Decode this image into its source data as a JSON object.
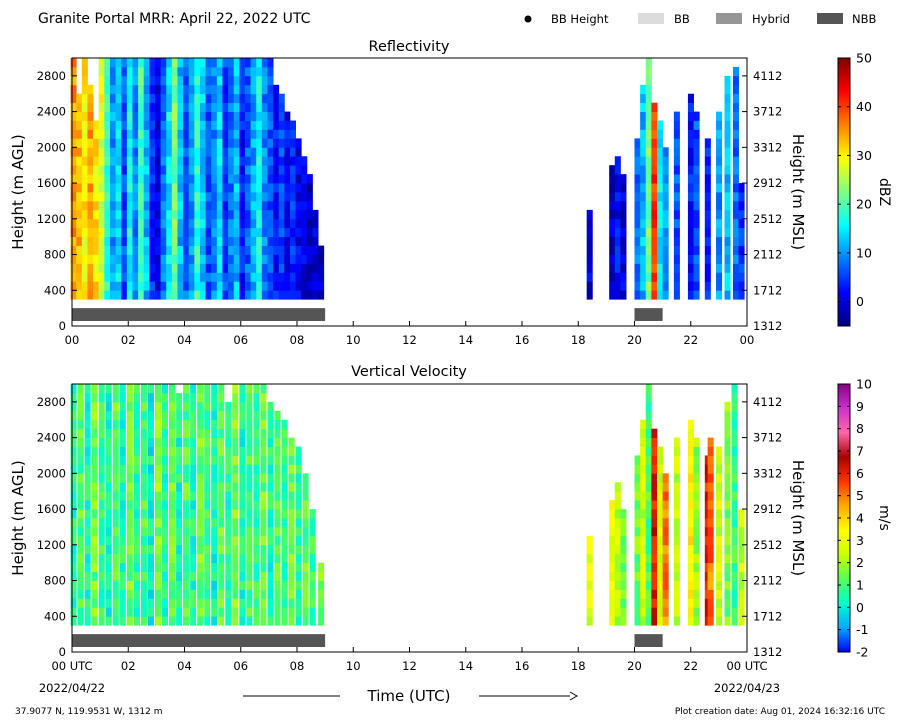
{
  "header": {
    "title": "Granite Portal MRR:  April 22, 2022 UTC",
    "legend": [
      {
        "label": "BB Height",
        "kind": "dot",
        "color": "#000000"
      },
      {
        "label": "BB",
        "kind": "rect",
        "color": "#dcdcdc"
      },
      {
        "label": "Hybrid",
        "kind": "rect",
        "color": "#969696"
      },
      {
        "label": "NBB",
        "kind": "rect",
        "color": "#555555"
      }
    ]
  },
  "footer": {
    "location": "37.9077 N, 119.9531 W, 1312 m",
    "created": "Plot creation date: Aug 01, 2024 16:32:16 UTC",
    "xlabel": "Time (UTC)",
    "start_date": "2022/04/22",
    "end_date": "2022/04/23"
  },
  "chart_data": [
    {
      "type": "heatmap",
      "title": "Reflectivity",
      "ylabel": "Height (m AGL)",
      "ylabel_right": "Height (m MSL)",
      "cbar_label": "dBZ",
      "x_ticks": [
        "00",
        "02",
        "04",
        "06",
        "08",
        "10",
        "12",
        "14",
        "16",
        "18",
        "20",
        "22",
        "00"
      ],
      "xlim_hours": [
        0,
        24
      ],
      "y_ticks": [
        0,
        400,
        800,
        1200,
        1600,
        2000,
        2400,
        2800
      ],
      "ylim": [
        0,
        3000
      ],
      "y_ticks_right": [
        1312,
        1712,
        2112,
        2512,
        2912,
        3312,
        3712,
        4112
      ],
      "cbar_ticks": [
        0,
        10,
        20,
        30,
        40,
        50
      ],
      "cbar_range": [
        -5,
        50
      ],
      "cbar_colors": [
        "#00007f",
        "#0000ff",
        "#007fff",
        "#00ffff",
        "#7fff7f",
        "#ffff00",
        "#ff7f00",
        "#ff0000",
        "#7f0000"
      ],
      "nbb_segments": [
        [
          0,
          9.0
        ],
        [
          20.0,
          21.0
        ]
      ],
      "columns": [
        {
          "t": 0.05,
          "top": 3000,
          "v": 35
        },
        {
          "t": 0.25,
          "top": 2600,
          "v": 33
        },
        {
          "t": 0.45,
          "top": 3000,
          "v": 30
        },
        {
          "t": 0.65,
          "top": 2700,
          "v": 34
        },
        {
          "t": 0.85,
          "top": 2300,
          "v": 31
        },
        {
          "t": 1.05,
          "top": 3000,
          "v": 28
        },
        {
          "t": 1.25,
          "top": 3000,
          "v": 18
        },
        {
          "t": 1.45,
          "top": 3000,
          "v": 10
        },
        {
          "t": 1.65,
          "top": 3000,
          "v": 14
        },
        {
          "t": 1.85,
          "top": 3000,
          "v": 6
        },
        {
          "t": 2.05,
          "top": 3000,
          "v": 16
        },
        {
          "t": 2.25,
          "top": 3000,
          "v": 9
        },
        {
          "t": 2.45,
          "top": 3000,
          "v": 20
        },
        {
          "t": 2.65,
          "top": 3000,
          "v": 12
        },
        {
          "t": 2.85,
          "top": 3000,
          "v": 4
        },
        {
          "t": 3.05,
          "top": 3000,
          "v": 1
        },
        {
          "t": 3.25,
          "top": 3000,
          "v": 8
        },
        {
          "t": 3.45,
          "top": 3000,
          "v": 15
        },
        {
          "t": 3.65,
          "top": 3000,
          "v": 22
        },
        {
          "t": 3.85,
          "top": 3000,
          "v": 12
        },
        {
          "t": 4.05,
          "top": 3000,
          "v": 7
        },
        {
          "t": 4.25,
          "top": 3000,
          "v": 10
        },
        {
          "t": 4.45,
          "top": 3000,
          "v": 18
        },
        {
          "t": 4.65,
          "top": 3000,
          "v": 13
        },
        {
          "t": 4.85,
          "top": 3000,
          "v": 6
        },
        {
          "t": 5.05,
          "top": 3000,
          "v": 9
        },
        {
          "t": 5.25,
          "top": 3000,
          "v": 14
        },
        {
          "t": 5.45,
          "top": 3000,
          "v": 5
        },
        {
          "t": 5.65,
          "top": 3000,
          "v": 8
        },
        {
          "t": 5.85,
          "top": 3000,
          "v": 12
        },
        {
          "t": 6.05,
          "top": 3000,
          "v": 3
        },
        {
          "t": 6.25,
          "top": 3000,
          "v": 7
        },
        {
          "t": 6.45,
          "top": 3000,
          "v": 11
        },
        {
          "t": 6.65,
          "top": 3000,
          "v": 16
        },
        {
          "t": 6.85,
          "top": 3000,
          "v": 9
        },
        {
          "t": 7.05,
          "top": 3000,
          "v": 6
        },
        {
          "t": 7.25,
          "top": 2700,
          "v": 3
        },
        {
          "t": 7.45,
          "top": 2600,
          "v": 5
        },
        {
          "t": 7.65,
          "top": 2400,
          "v": 2
        },
        {
          "t": 7.85,
          "top": 2300,
          "v": 4
        },
        {
          "t": 8.05,
          "top": 2100,
          "v": 1
        },
        {
          "t": 8.25,
          "top": 1900,
          "v": 0
        },
        {
          "t": 8.45,
          "top": 1700,
          "v": -1
        },
        {
          "t": 8.65,
          "top": 1300,
          "v": 0
        },
        {
          "t": 8.85,
          "top": 900,
          "v": -1
        },
        {
          "t": 18.4,
          "top": 1300,
          "v": 0
        },
        {
          "t": 19.2,
          "top": 1800,
          "v": -1
        },
        {
          "t": 19.4,
          "top": 1900,
          "v": 2
        },
        {
          "t": 19.6,
          "top": 1700,
          "v": 0
        },
        {
          "t": 20.1,
          "top": 2100,
          "v": 8
        },
        {
          "t": 20.3,
          "top": 2700,
          "v": 12
        },
        {
          "t": 20.5,
          "top": 3000,
          "v": 22
        },
        {
          "t": 20.7,
          "top": 2500,
          "v": 40
        },
        {
          "t": 20.9,
          "top": 2300,
          "v": 15
        },
        {
          "t": 21.1,
          "top": 2000,
          "v": 10
        },
        {
          "t": 21.5,
          "top": 2400,
          "v": 6
        },
        {
          "t": 22.0,
          "top": 2600,
          "v": 3
        },
        {
          "t": 22.2,
          "top": 2400,
          "v": 6
        },
        {
          "t": 22.6,
          "top": 2100,
          "v": 4
        },
        {
          "t": 23.0,
          "top": 2400,
          "v": 10
        },
        {
          "t": 23.3,
          "top": 2800,
          "v": 12
        },
        {
          "t": 23.6,
          "top": 2900,
          "v": 8
        },
        {
          "t": 23.8,
          "top": 1600,
          "v": 4
        }
      ]
    },
    {
      "type": "heatmap",
      "title": "Vertical Velocity",
      "ylabel": "Height (m AGL)",
      "ylabel_right": "Height (m MSL)",
      "cbar_label": "m/s",
      "x_ticks": [
        "00 UTC",
        "02",
        "04",
        "06",
        "08",
        "10",
        "12",
        "14",
        "16",
        "18",
        "20",
        "22",
        "00 UTC"
      ],
      "xlim_hours": [
        0,
        24
      ],
      "y_ticks": [
        0,
        400,
        800,
        1200,
        1600,
        2000,
        2400,
        2800
      ],
      "ylim": [
        0,
        3000
      ],
      "y_ticks_right": [
        1312,
        1712,
        2112,
        2512,
        2912,
        3312,
        3712,
        4112
      ],
      "cbar_ticks": [
        -2,
        -1,
        0,
        1,
        2,
        3,
        4,
        5,
        6,
        7,
        8,
        9,
        10
      ],
      "cbar_range": [
        -2,
        10
      ],
      "cbar_colors": [
        "#0000ff",
        "#00aaff",
        "#00ffcc",
        "#55ff55",
        "#ccff00",
        "#ffff00",
        "#ffaa00",
        "#ff3300",
        "#aa0000",
        "#ff66aa",
        "#cc33cc",
        "#880088"
      ],
      "nbb_segments": [
        [
          0,
          9.0
        ],
        [
          20.0,
          21.0
        ]
      ],
      "columns": [
        {
          "t": 0.05,
          "top": 3000,
          "v": 0.6
        },
        {
          "t": 0.3,
          "top": 3000,
          "v": 1.1
        },
        {
          "t": 0.55,
          "top": 3000,
          "v": 0.4
        },
        {
          "t": 0.8,
          "top": 3000,
          "v": 1.5
        },
        {
          "t": 1.05,
          "top": 3000,
          "v": 0.8
        },
        {
          "t": 1.3,
          "top": 3000,
          "v": 0.3
        },
        {
          "t": 1.55,
          "top": 3000,
          "v": 1.2
        },
        {
          "t": 1.8,
          "top": 3000,
          "v": 0.5
        },
        {
          "t": 2.05,
          "top": 3000,
          "v": 1.4
        },
        {
          "t": 2.3,
          "top": 3000,
          "v": 0.7
        },
        {
          "t": 2.55,
          "top": 3000,
          "v": 1.0
        },
        {
          "t": 2.8,
          "top": 3000,
          "v": 0.2
        },
        {
          "t": 3.05,
          "top": 3000,
          "v": 1.6
        },
        {
          "t": 3.3,
          "top": 3000,
          "v": 0.6
        },
        {
          "t": 3.55,
          "top": 3000,
          "v": 1.3
        },
        {
          "t": 3.8,
          "top": 2900,
          "v": 0.4
        },
        {
          "t": 4.05,
          "top": 3000,
          "v": 1.1
        },
        {
          "t": 4.3,
          "top": 3000,
          "v": 0.5
        },
        {
          "t": 4.55,
          "top": 3000,
          "v": 1.4
        },
        {
          "t": 4.8,
          "top": 3000,
          "v": 0.8
        },
        {
          "t": 5.05,
          "top": 3000,
          "v": 0.3
        },
        {
          "t": 5.3,
          "top": 3000,
          "v": 1.2
        },
        {
          "t": 5.55,
          "top": 2800,
          "v": 0.6
        },
        {
          "t": 5.8,
          "top": 3000,
          "v": 1.5
        },
        {
          "t": 6.05,
          "top": 3000,
          "v": 0.4
        },
        {
          "t": 6.3,
          "top": 3000,
          "v": 1.0
        },
        {
          "t": 6.55,
          "top": 3000,
          "v": 0.7
        },
        {
          "t": 6.8,
          "top": 3000,
          "v": 1.3
        },
        {
          "t": 7.05,
          "top": 2800,
          "v": 0.5
        },
        {
          "t": 7.3,
          "top": 2700,
          "v": 1.1
        },
        {
          "t": 7.55,
          "top": 2600,
          "v": 0.8
        },
        {
          "t": 7.8,
          "top": 2400,
          "v": 1.4
        },
        {
          "t": 8.05,
          "top": 2300,
          "v": 0.6
        },
        {
          "t": 8.3,
          "top": 2000,
          "v": 1.2
        },
        {
          "t": 8.55,
          "top": 1600,
          "v": 0.9
        },
        {
          "t": 8.85,
          "top": 1000,
          "v": 1.6
        },
        {
          "t": 18.4,
          "top": 1300,
          "v": 2.8
        },
        {
          "t": 19.2,
          "top": 1700,
          "v": 3.2
        },
        {
          "t": 19.4,
          "top": 1900,
          "v": 2.2
        },
        {
          "t": 19.6,
          "top": 1600,
          "v": 1.6
        },
        {
          "t": 20.1,
          "top": 2200,
          "v": 1.5
        },
        {
          "t": 20.3,
          "top": 2600,
          "v": 2.5
        },
        {
          "t": 20.5,
          "top": 3000,
          "v": 1.0
        },
        {
          "t": 20.7,
          "top": 2500,
          "v": 6.2
        },
        {
          "t": 20.9,
          "top": 2300,
          "v": 2.6
        },
        {
          "t": 21.1,
          "top": 2000,
          "v": 5.0
        },
        {
          "t": 21.5,
          "top": 2400,
          "v": 2.4
        },
        {
          "t": 22.0,
          "top": 2600,
          "v": 3.4
        },
        {
          "t": 22.2,
          "top": 2400,
          "v": 1.8
        },
        {
          "t": 22.6,
          "top": 2200,
          "v": 6.0
        },
        {
          "t": 22.7,
          "top": 2400,
          "v": 5.0
        },
        {
          "t": 23.0,
          "top": 2300,
          "v": 2.6
        },
        {
          "t": 23.3,
          "top": 2800,
          "v": 1.6
        },
        {
          "t": 23.55,
          "top": 3000,
          "v": 0.8
        },
        {
          "t": 23.8,
          "top": 1600,
          "v": 2.4
        }
      ]
    }
  ]
}
